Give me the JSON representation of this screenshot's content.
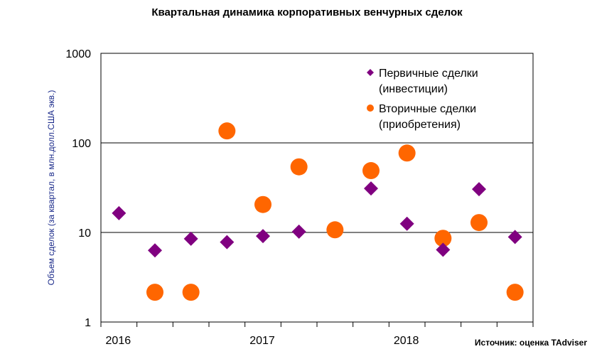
{
  "chart_data": {
    "type": "scatter",
    "title": "Квартальная динамика корпоративных венчурных сделок",
    "xlabel": "",
    "ylabel": "Объем сделок (за квартал, в млн.долл.США экв.)",
    "yscale": "log",
    "ylim": [
      1,
      1000
    ],
    "yticks": [
      "1",
      "10",
      "100",
      "1000"
    ],
    "ytick_values": [
      1,
      10,
      100,
      1000
    ],
    "x": [
      "2016 Q1",
      "2016 Q2",
      "2016 Q3",
      "2016 Q4",
      "2017 Q1",
      "2017 Q2",
      "2017 Q3",
      "2017 Q4",
      "2018 Q1",
      "2018 Q2",
      "2018 Q3",
      "2018 Q4"
    ],
    "xtick_labels": [
      {
        "label": "2016",
        "index": 0
      },
      {
        "label": "2017",
        "index": 4
      },
      {
        "label": "2018",
        "index": 8
      }
    ],
    "grid": "horizontal major",
    "legend_placement": "top-right",
    "series": [
      {
        "name": "Первичные сделки (инвестиции)",
        "legend_lines": [
          "Первичные сделки",
          "(инвестиции)"
        ],
        "marker": "diamond",
        "color": "#800080",
        "values": [
          16.4,
          6.3,
          8.5,
          7.8,
          9.1,
          10.2,
          null,
          31,
          12.5,
          6.4,
          30.4,
          8.9
        ]
      },
      {
        "name": "Вторичные сделки (приобретения)",
        "legend_lines": [
          "Вторичные сделки",
          "(приобретения)"
        ],
        "marker": "circle",
        "color": "#ff6600",
        "values": [
          null,
          2.15,
          2.15,
          136,
          20.5,
          54,
          10.7,
          49,
          77,
          8.6,
          12.9,
          2.15
        ]
      }
    ]
  },
  "source": "Источник: оценка TAdviser"
}
